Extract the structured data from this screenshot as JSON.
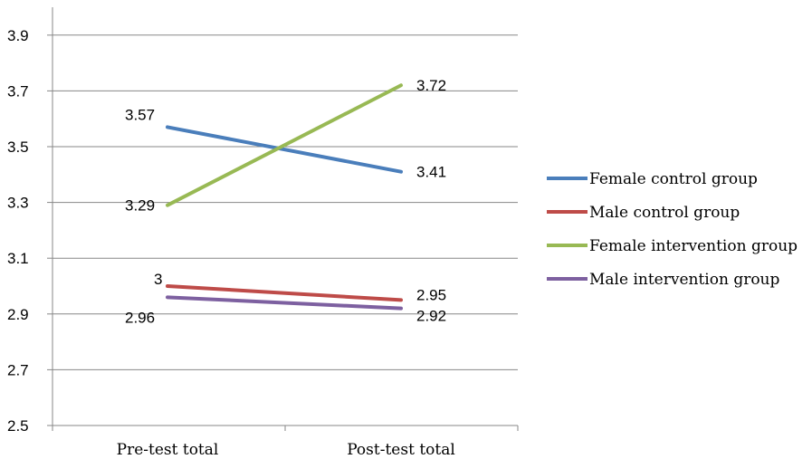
{
  "chart_data": {
    "type": "line",
    "categories": [
      "Pre-test total",
      "Post-test total"
    ],
    "ylim": [
      2.5,
      4.0
    ],
    "yticks": [
      "2.5",
      "2.7",
      "2.9",
      "3.1",
      "3.3",
      "3.5",
      "3.7",
      "3.9"
    ],
    "grid": true,
    "legend_position": "right",
    "series": [
      {
        "name": "Female control group",
        "color": "#4a7ebb",
        "values": [
          3.57,
          3.41
        ],
        "labels": [
          "3.57",
          "3.41"
        ]
      },
      {
        "name": "Male control group",
        "color": "#be4b48",
        "values": [
          3.0,
          2.95
        ],
        "labels": [
          "3",
          "2.95"
        ]
      },
      {
        "name": "Female intervention group",
        "color": "#98b954",
        "values": [
          3.29,
          3.72
        ],
        "labels": [
          "3.29",
          "3.72"
        ]
      },
      {
        "name": "Male intervention group",
        "color": "#7d60a0",
        "values": [
          2.96,
          2.92
        ],
        "labels": [
          "2.96",
          "2.92"
        ]
      }
    ]
  }
}
